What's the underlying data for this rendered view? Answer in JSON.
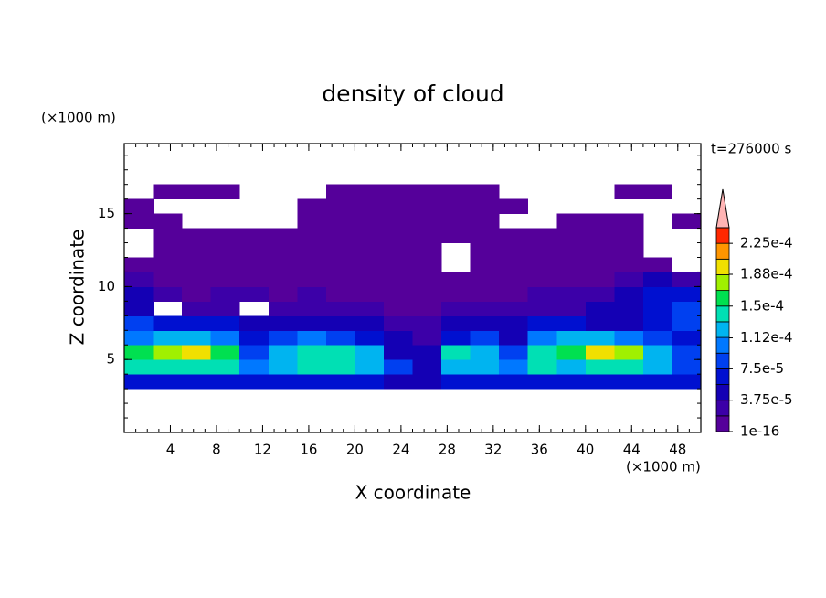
{
  "chart_data": {
    "type": "contour",
    "title": "density of cloud",
    "annotation": "t=276000 s",
    "x_label": "X coordinate",
    "y_label": "Z coordinate",
    "x_unit": "(×1000 m)",
    "y_unit": "(×1000 m)",
    "xlim": [
      0,
      50
    ],
    "ylim": [
      0,
      19.8
    ],
    "xticks": [
      4,
      8,
      12,
      16,
      20,
      24,
      28,
      32,
      36,
      40,
      44,
      48
    ],
    "yticks": [
      5,
      10,
      15
    ],
    "xminor": 1,
    "yminor": 1,
    "x": [
      0,
      2.5,
      5,
      7.5,
      10,
      12.5,
      15,
      17.5,
      20,
      22.5,
      25,
      27.5,
      30,
      32.5,
      35,
      37.5,
      40,
      42.5,
      45,
      47.5,
      50
    ],
    "z": [
      3,
      4,
      5,
      6,
      7,
      8,
      9,
      10,
      11,
      12,
      13,
      14,
      15,
      16,
      17
    ],
    "values": [
      [
        6.5e-05,
        6.5e-05,
        6.5e-05,
        6.5e-05,
        6.5e-05,
        6.5e-05,
        6.5e-05,
        6.5e-05,
        6.5e-05,
        4.5e-05,
        4.5e-05,
        6.5e-05,
        6.5e-05,
        6.5e-05,
        6.5e-05,
        6.5e-05,
        6.5e-05,
        6.5e-05,
        6.5e-05,
        6.5e-05
      ],
      [
        0.00014,
        0.00014,
        0.00014,
        0.00014,
        0.0001,
        0.00012,
        0.00014,
        0.00014,
        0.00012,
        8.5e-05,
        4.5e-05,
        0.00012,
        0.00012,
        0.0001,
        0.00014,
        0.00012,
        0.00014,
        0.00014,
        0.00012,
        8.5e-05
      ],
      [
        0.00016,
        0.00018,
        0.000195,
        0.00016,
        8.5e-05,
        0.00012,
        0.00014,
        0.00014,
        0.00012,
        4.5e-05,
        4.5e-05,
        0.00014,
        0.00012,
        8.5e-05,
        0.00014,
        0.00016,
        0.000195,
        0.00018,
        0.00012,
        8.5e-05
      ],
      [
        0.0001,
        0.00012,
        0.00012,
        0.0001,
        6.5e-05,
        8.5e-05,
        0.0001,
        8.5e-05,
        6.5e-05,
        4.5e-05,
        2.5e-05,
        6.5e-05,
        8.5e-05,
        4.5e-05,
        0.0001,
        0.00012,
        0.00012,
        0.0001,
        8.5e-05,
        6.5e-05
      ],
      [
        8.5e-05,
        6.5e-05,
        6.5e-05,
        6.5e-05,
        4.5e-05,
        4.5e-05,
        4.5e-05,
        4.5e-05,
        4.5e-05,
        2.5e-05,
        2.5e-05,
        4.5e-05,
        4.5e-05,
        4.5e-05,
        6.5e-05,
        6.5e-05,
        4.5e-05,
        4.5e-05,
        6.5e-05,
        8.5e-05
      ],
      [
        4.5e-05,
        null,
        2.5e-05,
        2.5e-05,
        null,
        2.5e-05,
        2.5e-05,
        2.5e-05,
        2.5e-05,
        1e-05,
        1e-05,
        2.5e-05,
        2.5e-05,
        2.5e-05,
        2.5e-05,
        2.5e-05,
        4.5e-05,
        4.5e-05,
        6.5e-05,
        8.5e-05
      ],
      [
        4.5e-05,
        2.5e-05,
        1e-05,
        2.5e-05,
        2.5e-05,
        1e-05,
        2.5e-05,
        1e-05,
        1e-05,
        1e-05,
        1e-05,
        1e-05,
        1e-05,
        1e-05,
        2.5e-05,
        2.5e-05,
        2.5e-05,
        4.5e-05,
        6.5e-05,
        6.5e-05
      ],
      [
        2.5e-05,
        1e-05,
        1e-05,
        1e-05,
        1e-05,
        1e-05,
        1e-05,
        1e-05,
        1e-05,
        1e-05,
        1e-05,
        1e-05,
        1e-05,
        1e-05,
        1e-05,
        1e-05,
        1e-05,
        2.5e-05,
        4.5e-05,
        2.5e-05
      ],
      [
        1e-05,
        1e-05,
        1e-05,
        1e-05,
        1e-05,
        1e-05,
        1e-05,
        1e-05,
        1e-05,
        1e-05,
        1e-05,
        null,
        1e-05,
        1e-05,
        1e-05,
        1e-05,
        1e-05,
        1e-05,
        1e-05,
        null
      ],
      [
        null,
        1e-05,
        1e-05,
        1e-05,
        1e-05,
        1e-05,
        1e-05,
        1e-05,
        1e-05,
        1e-05,
        1e-05,
        null,
        1e-05,
        1e-05,
        1e-05,
        1e-05,
        1e-05,
        1e-05,
        null,
        null
      ],
      [
        null,
        1e-05,
        1e-05,
        1e-05,
        1e-05,
        1e-05,
        1e-05,
        1e-05,
        1e-05,
        1e-05,
        1e-05,
        1e-05,
        1e-05,
        1e-05,
        1e-05,
        1e-05,
        1e-05,
        1e-05,
        null,
        null
      ],
      [
        1e-05,
        1e-05,
        null,
        null,
        null,
        null,
        1e-05,
        1e-05,
        1e-05,
        1e-05,
        1e-05,
        1e-05,
        1e-05,
        null,
        null,
        1e-05,
        1e-05,
        1e-05,
        null,
        1e-05
      ],
      [
        1e-05,
        null,
        null,
        null,
        null,
        null,
        1e-05,
        1e-05,
        1e-05,
        1e-05,
        1e-05,
        1e-05,
        1e-05,
        1e-05,
        null,
        null,
        null,
        null,
        null,
        null
      ],
      [
        null,
        1e-05,
        1e-05,
        1e-05,
        null,
        null,
        null,
        1e-05,
        1e-05,
        1e-05,
        1e-05,
        1e-05,
        1e-05,
        null,
        null,
        null,
        null,
        1e-05,
        1e-05,
        null
      ]
    ],
    "colorbar": {
      "levels": [
        1e-16,
        1.875e-05,
        3.75e-05,
        5.625e-05,
        7.5e-05,
        9.375e-05,
        0.0001125,
        0.00013125,
        0.00015,
        0.00016875,
        0.0001875,
        0.00020625,
        0.000225,
        0.00024375
      ],
      "colors": [
        "#55009a",
        "#3c00a8",
        "#1400b4",
        "#0010d0",
        "#0040f0",
        "#0078ff",
        "#00b4f0",
        "#00e0b4",
        "#00e050",
        "#a0f000",
        "#f0e000",
        "#ff9600",
        "#ff2800"
      ],
      "extend_color": "#ffb4b4",
      "ticks": [
        1e-16,
        {
          "value": 3.75e-05,
          "label": "3.75e-5"
        },
        {
          "value": 7.5e-05,
          "label": "7.5e-5"
        },
        {
          "value": 0.000112,
          "label": "1.12e-4"
        },
        {
          "value": 0.00015,
          "label": "1.5e-4"
        },
        {
          "value": 0.000188,
          "label": "1.88e-4"
        },
        {
          "value": 0.000225,
          "label": "2.25e-4"
        }
      ]
    }
  }
}
